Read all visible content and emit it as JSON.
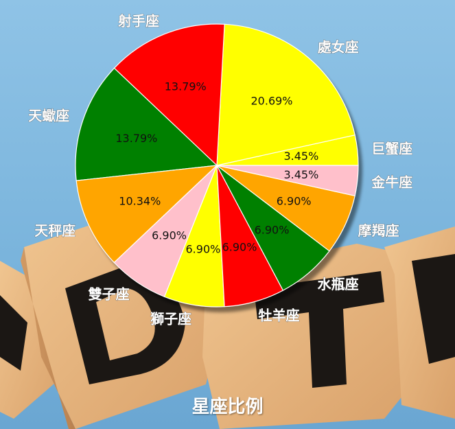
{
  "chart_data": {
    "type": "pie",
    "title": "星座比例",
    "start_angle_deg": 0,
    "direction": "counterclockwise",
    "shadow": true,
    "slices": [
      {
        "label": "巨蟹座",
        "value": 3.45,
        "pct_text": "3.45%",
        "color": "#ffff00"
      },
      {
        "label": "處女座",
        "value": 20.69,
        "pct_text": "20.69%",
        "color": "#ffff00"
      },
      {
        "label": "射手座",
        "value": 13.79,
        "pct_text": "13.79%",
        "color": "#ff0000"
      },
      {
        "label": "天蠍座",
        "value": 13.79,
        "pct_text": "13.79%",
        "color": "#008000"
      },
      {
        "label": "天秤座",
        "value": 10.34,
        "pct_text": "10.34%",
        "color": "#ffa500"
      },
      {
        "label": "雙子座",
        "value": 6.9,
        "pct_text": "6.90%",
        "color": "#ffc0cb"
      },
      {
        "label": "獅子座",
        "value": 6.9,
        "pct_text": "6.90%",
        "color": "#ffff00"
      },
      {
        "label": "牡羊座",
        "value": 6.9,
        "pct_text": "6.90%",
        "color": "#ff0000"
      },
      {
        "label": "水瓶座",
        "value": 6.9,
        "pct_text": "6.90%",
        "color": "#008000"
      },
      {
        "label": "摩羯座",
        "value": 6.9,
        "pct_text": "6.90%",
        "color": "#ffa500"
      },
      {
        "label": "金牛座",
        "value": 3.45,
        "pct_text": "3.45%",
        "color": "#ffc0cb"
      }
    ]
  }
}
